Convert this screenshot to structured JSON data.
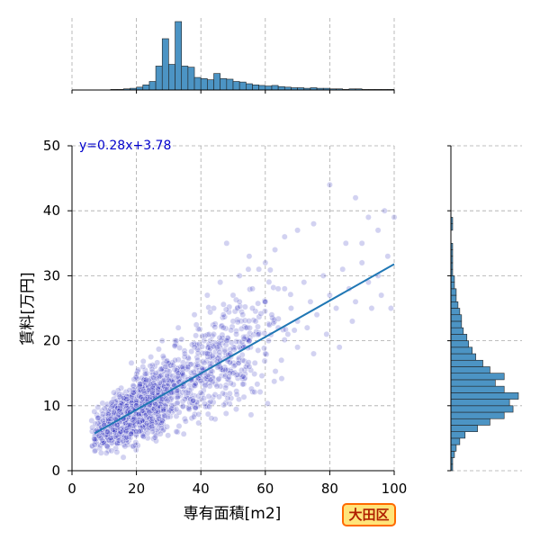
{
  "chart_data": {
    "type": "scatter",
    "xlabel": "専有面積[m2]",
    "ylabel": "賃料[万円]",
    "xlim": [
      0,
      100
    ],
    "ylim": [
      0,
      50
    ],
    "xticks": [
      0,
      20,
      40,
      60,
      80,
      100
    ],
    "yticks": [
      0,
      10,
      20,
      30,
      40,
      50
    ],
    "grid": true,
    "regression": {
      "label": "y=0.28x+3.78",
      "slope": 0.28,
      "intercept": 3.78,
      "x_range": [
        7,
        100
      ]
    },
    "badge": "大田区",
    "colors": {
      "points": "#3030c0",
      "regression": "#1f77b4",
      "hist": "#4c94c4",
      "equation": "#0000cc"
    },
    "scatter_sample": [
      [
        7,
        4
      ],
      [
        8,
        6
      ],
      [
        9,
        5
      ],
      [
        10,
        7
      ],
      [
        11,
        6
      ],
      [
        12,
        8
      ],
      [
        13,
        9
      ],
      [
        14,
        7
      ],
      [
        15,
        10
      ],
      [
        16,
        8
      ],
      [
        17,
        11
      ],
      [
        18,
        9
      ],
      [
        19,
        12
      ],
      [
        20,
        10
      ],
      [
        21,
        13
      ],
      [
        22,
        11
      ],
      [
        23,
        14
      ],
      [
        24,
        10
      ],
      [
        25,
        12
      ],
      [
        26,
        15
      ],
      [
        27,
        13
      ],
      [
        28,
        11
      ],
      [
        29,
        16
      ],
      [
        30,
        14
      ],
      [
        31,
        12
      ],
      [
        32,
        17
      ],
      [
        33,
        15
      ],
      [
        34,
        13
      ],
      [
        35,
        18
      ],
      [
        36,
        16
      ],
      [
        37,
        14
      ],
      [
        38,
        19
      ],
      [
        39,
        17
      ],
      [
        40,
        15
      ],
      [
        41,
        20
      ],
      [
        42,
        18
      ],
      [
        43,
        16
      ],
      [
        44,
        21
      ],
      [
        45,
        19
      ],
      [
        46,
        17
      ],
      [
        47,
        22
      ],
      [
        48,
        20
      ],
      [
        49,
        18
      ],
      [
        50,
        23
      ],
      [
        51,
        21
      ],
      [
        52,
        19
      ],
      [
        53,
        24
      ],
      [
        54,
        22
      ],
      [
        55,
        20
      ],
      [
        56,
        25
      ],
      [
        57,
        23
      ],
      [
        58,
        21
      ],
      [
        60,
        26
      ],
      [
        62,
        24
      ],
      [
        64,
        22
      ],
      [
        66,
        28
      ],
      [
        68,
        25
      ],
      [
        70,
        23
      ],
      [
        72,
        29
      ],
      [
        74,
        26
      ],
      [
        76,
        24
      ],
      [
        78,
        30
      ],
      [
        80,
        27
      ],
      [
        82,
        25
      ],
      [
        84,
        31
      ],
      [
        86,
        28
      ],
      [
        88,
        26
      ],
      [
        90,
        32
      ],
      [
        92,
        29
      ],
      [
        95,
        30
      ],
      [
        98,
        33
      ],
      [
        20,
        6
      ],
      [
        25,
        8
      ],
      [
        30,
        9
      ],
      [
        35,
        11
      ],
      [
        40,
        12
      ],
      [
        45,
        13
      ],
      [
        50,
        15
      ],
      [
        55,
        16
      ],
      [
        60,
        18
      ],
      [
        65,
        17
      ],
      [
        70,
        19
      ],
      [
        75,
        18
      ],
      [
        22,
        16
      ],
      [
        28,
        20
      ],
      [
        33,
        22
      ],
      [
        38,
        24
      ],
      [
        42,
        27
      ],
      [
        46,
        29
      ],
      [
        52,
        30
      ],
      [
        58,
        31
      ],
      [
        63,
        34
      ],
      [
        66,
        36
      ],
      [
        70,
        37
      ],
      [
        75,
        38
      ],
      [
        80,
        44
      ],
      [
        88,
        42
      ],
      [
        92,
        39
      ],
      [
        97,
        40
      ],
      [
        100,
        39
      ],
      [
        48,
        35
      ],
      [
        55,
        33
      ],
      [
        60,
        32
      ],
      [
        64,
        28
      ],
      [
        85,
        35
      ],
      [
        90,
        35
      ],
      [
        95,
        37
      ],
      [
        12,
        5
      ],
      [
        15,
        6
      ],
      [
        18,
        7
      ],
      [
        24,
        9
      ],
      [
        27,
        8
      ],
      [
        31,
        10
      ],
      [
        36,
        12
      ],
      [
        43,
        14
      ],
      [
        49,
        15
      ],
      [
        53,
        17
      ],
      [
        61,
        20
      ],
      [
        67,
        21
      ],
      [
        73,
        22
      ],
      [
        79,
        21
      ],
      [
        83,
        19
      ],
      [
        87,
        23
      ],
      [
        93,
        25
      ],
      [
        96,
        27
      ],
      [
        99,
        25
      ],
      [
        44,
        25
      ],
      [
        50,
        27
      ],
      [
        56,
        28
      ],
      [
        47,
        24
      ],
      [
        52,
        26
      ]
    ],
    "top_histogram": {
      "bin_start": 0,
      "bin_width": 2,
      "counts": [
        0,
        0,
        0,
        0,
        0,
        0,
        1,
        1,
        2,
        3,
        5,
        9,
        15,
        42,
        90,
        45,
        120,
        42,
        40,
        22,
        20,
        18,
        29,
        20,
        19,
        15,
        14,
        11,
        9,
        8,
        7,
        8,
        6,
        5,
        4,
        4,
        3,
        4,
        3,
        3,
        2,
        2,
        1,
        2,
        2,
        1,
        1,
        1,
        1,
        1
      ]
    },
    "right_histogram": {
      "bin_start": 0,
      "bin_width": 1,
      "counts": [
        1,
        1,
        2,
        3,
        5,
        8,
        15,
        22,
        30,
        35,
        33,
        38,
        30,
        25,
        30,
        22,
        18,
        14,
        12,
        10,
        9,
        7,
        6,
        6,
        5,
        4,
        3,
        3,
        2,
        2,
        1,
        1,
        1,
        1,
        1,
        0,
        0,
        1,
        1,
        0,
        0,
        0,
        0,
        0,
        0,
        0,
        0,
        0,
        0,
        0
      ]
    }
  }
}
